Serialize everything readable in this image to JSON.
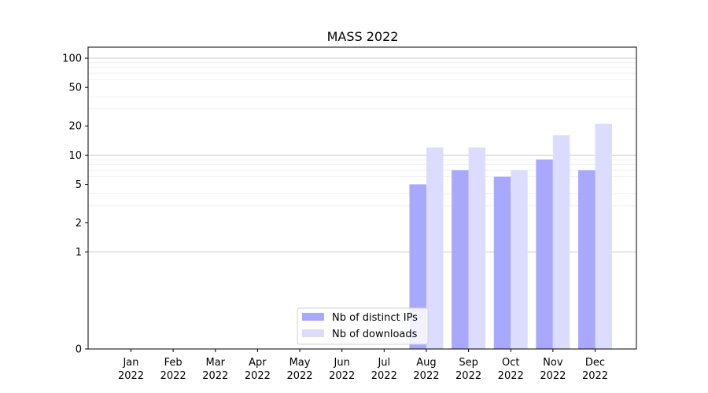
{
  "chart_data": {
    "type": "bar",
    "title": "MASS 2022",
    "xlabel": "",
    "ylabel": "",
    "yscale": "symlog",
    "ylim": [
      0,
      130
    ],
    "yticks": [
      0,
      1,
      2,
      5,
      10,
      20,
      50,
      100
    ],
    "grid": "horizontal",
    "legend_position": "lower-center",
    "categories": [
      [
        "Jan",
        "2022"
      ],
      [
        "Feb",
        "2022"
      ],
      [
        "Mar",
        "2022"
      ],
      [
        "Apr",
        "2022"
      ],
      [
        "May",
        "2022"
      ],
      [
        "Jun",
        "2022"
      ],
      [
        "Jul",
        "2022"
      ],
      [
        "Aug",
        "2022"
      ],
      [
        "Sep",
        "2022"
      ],
      [
        "Oct",
        "2022"
      ],
      [
        "Nov",
        "2022"
      ],
      [
        "Dec",
        "2022"
      ]
    ],
    "series": [
      {
        "name": "Nb of distinct IPs",
        "color": "#a8a8ff",
        "values": [
          0,
          0,
          0,
          0,
          0,
          0,
          0,
          5,
          7,
          6,
          9,
          7
        ]
      },
      {
        "name": "Nb of downloads",
        "color": "#dcdcff",
        "values": [
          0,
          0,
          0,
          0,
          0,
          0,
          0,
          12,
          12,
          7,
          16,
          21
        ]
      }
    ]
  }
}
